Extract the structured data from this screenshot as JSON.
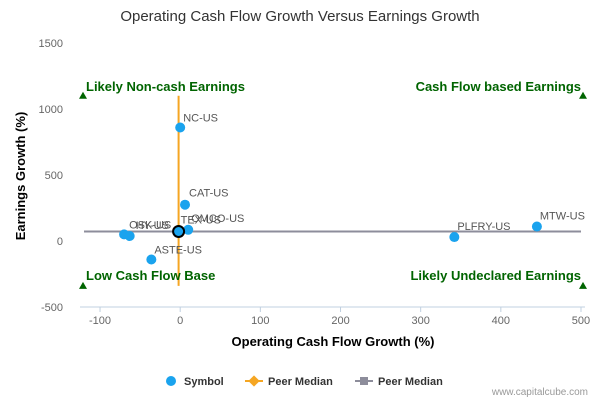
{
  "chart_data": {
    "type": "scatter",
    "title": "Operating Cash Flow Growth Versus Earnings Growth",
    "xlabel": "Operating Cash Flow Growth (%)",
    "ylabel": "Earnings Growth (%)",
    "xlim": [
      -125,
      505
    ],
    "ylim": [
      -500,
      1500
    ],
    "x_ticks": [
      -100,
      0,
      100,
      200,
      300,
      400,
      500
    ],
    "y_ticks": [
      -500,
      0,
      500,
      1000,
      1500
    ],
    "x_tick_labels": [
      "-100",
      "0",
      "100",
      "200",
      "300",
      "400",
      "500"
    ],
    "y_tick_labels": [
      "-500",
      "0",
      "500",
      "1000",
      "1500"
    ],
    "grid": false,
    "legend_position": "bottom",
    "colors": {
      "symbol": "#1aa3ee",
      "peer_median_vertical": "#f5a623",
      "peer_median_horizontal": "#8d8d9b",
      "quadrant_text": "#006400"
    },
    "series": [
      {
        "name": "Symbol",
        "points": [
          {
            "label": "NC-US",
            "x": 0,
            "y": 860
          },
          {
            "label": "CAT-US",
            "x": 6,
            "y": 275
          },
          {
            "label": "TEX-US",
            "x": -2,
            "y": 72
          },
          {
            "label": "OMCO-US",
            "x": 10,
            "y": 85
          },
          {
            "label": "OSK-US",
            "x": -70,
            "y": 50
          },
          {
            "label": "HY-US",
            "x": -63,
            "y": 38
          },
          {
            "label": "ASTE-US",
            "x": -36,
            "y": -140
          },
          {
            "label": "PLFRY-US",
            "x": 342,
            "y": 30
          },
          {
            "label": "MTW-US",
            "x": 445,
            "y": 110
          }
        ]
      },
      {
        "name": "Peer Median",
        "orientation": "vertical",
        "x": -2,
        "y_range": [
          -340,
          1100
        ]
      },
      {
        "name": "Peer Median",
        "orientation": "horizontal",
        "y": 72,
        "x_range": [
          -120,
          500
        ]
      }
    ],
    "highlight_point": {
      "x": -2,
      "y": 72
    },
    "quadrants": [
      {
        "label": "Likely Non-cash Earnings",
        "corner": "top-left"
      },
      {
        "label": "Cash Flow based Earnings",
        "corner": "top-right"
      },
      {
        "label": "Low Cash Flow Base",
        "corner": "bottom-left"
      },
      {
        "label": "Likely Undeclared Earnings",
        "corner": "bottom-right"
      }
    ],
    "credit": "www.capitalcube.com"
  }
}
